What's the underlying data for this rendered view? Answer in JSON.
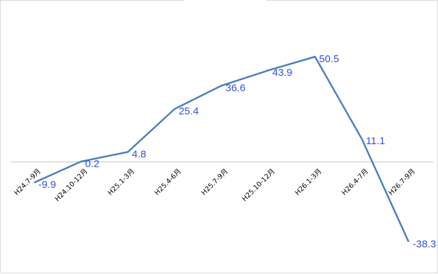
{
  "chart_data": {
    "type": "line",
    "title": "",
    "xlabel": "",
    "ylabel": "",
    "categories": [
      "H24.7-9月",
      "H24.10-12月",
      "H25.1-3月",
      "H25.4-6月",
      "H25.7-9月",
      "H25.10-12月",
      "H26.1-3月",
      "H26.4-7月",
      "H26.7-9月"
    ],
    "series": [
      {
        "values": [
          -9.9,
          0.2,
          4.8,
          25.4,
          36.6,
          43.9,
          50.5,
          11.1,
          -38.3
        ]
      }
    ],
    "data_labels": [
      "-9.9",
      "0.2",
      "4.8",
      "25.4",
      "36.6",
      "43.9",
      "50.5",
      "11.1",
      "-38.3"
    ],
    "ylim": [
      -40,
      60
    ],
    "grid": false,
    "legend": "none",
    "colors": {
      "line": "#4a7ebb",
      "label": "#3350d6",
      "axis": "#bfbfbf",
      "tick_text": "#000000"
    }
  }
}
